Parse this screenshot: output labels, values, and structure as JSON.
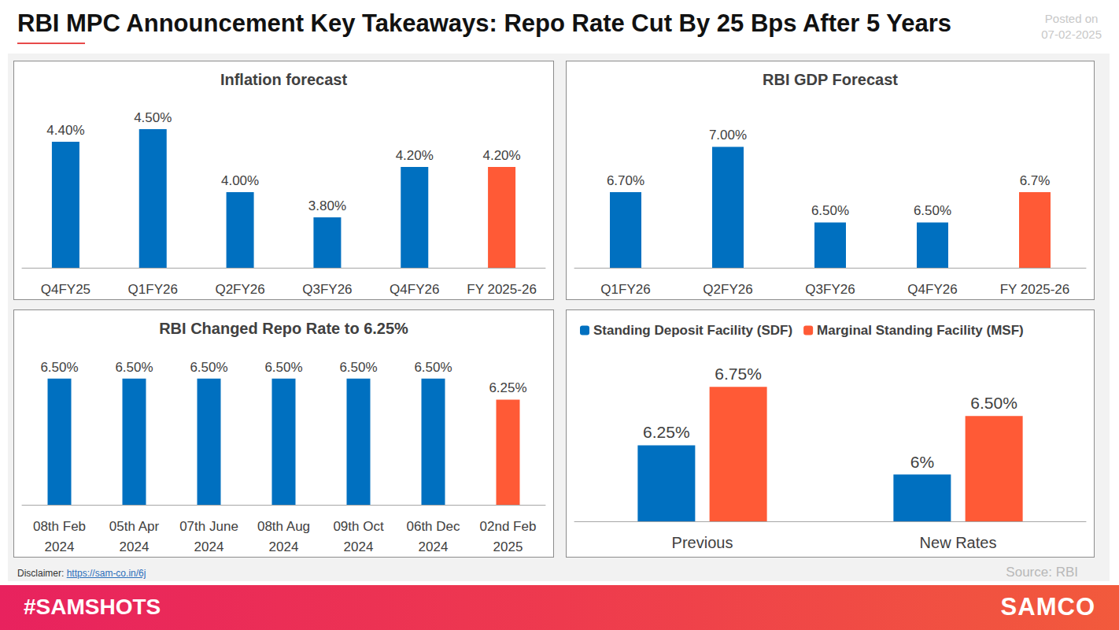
{
  "page": {
    "title": "RBI MPC Announcement Key Takeaways: Repo Rate Cut By 25 Bps After 5 Years",
    "posted_label": "Posted on",
    "posted_date": "07-02-2025",
    "disclaimer_label": "Disclaimer:",
    "disclaimer_link": "https://sam-co.in/6j",
    "source": "Source: RBI",
    "hashtag": "#SAMSHOTS",
    "brand": "SAMCO"
  },
  "chart_data": [
    {
      "type": "bar",
      "title": "Inflation forecast",
      "categories": [
        "Q4FY25",
        "Q1FY26",
        "Q2FY26",
        "Q3FY26",
        "Q4FY26",
        "FY 2025-26"
      ],
      "values": [
        4.4,
        4.5,
        4.0,
        3.8,
        4.2,
        4.2
      ],
      "value_labels": [
        "4.40%",
        "4.50%",
        "4.00%",
        "3.80%",
        "4.20%",
        "4.20%"
      ],
      "colors": [
        "#0070c0",
        "#0070c0",
        "#0070c0",
        "#0070c0",
        "#0070c0",
        "#ff5a36"
      ],
      "ylim": [
        3.4,
        4.6
      ],
      "yticks": [
        3.4,
        3.6,
        3.8,
        4.0,
        4.2,
        4.4,
        4.6
      ],
      "data_labels": true,
      "tick_labels": "x",
      "grid": false
    },
    {
      "type": "bar",
      "title": "RBI GDP Forecast",
      "categories": [
        "Q1FY26",
        "Q2FY26",
        "Q3FY26",
        "Q4FY26",
        "FY 2025-26"
      ],
      "values": [
        6.7,
        7.0,
        6.5,
        6.5,
        6.7
      ],
      "value_labels": [
        "6.70%",
        "7.00%",
        "6.50%",
        "6.50%",
        "6.7%"
      ],
      "colors": [
        "#0070c0",
        "#0070c0",
        "#0070c0",
        "#0070c0",
        "#ff5a36"
      ],
      "ylim": [
        6.2,
        7.2
      ],
      "yticks": [
        6.2,
        6.4,
        6.6,
        6.8,
        7.0,
        7.2
      ],
      "data_labels": true,
      "tick_labels": "x",
      "grid": false
    },
    {
      "type": "bar",
      "title": "RBI Changed Repo Rate to 6.25%",
      "categories": [
        "08th Feb 2024",
        "05th Apr 2024",
        "07th June 2024",
        "08th Aug 2024",
        "09th Oct 2024",
        "06th Dec 2024",
        "02nd Feb 2025"
      ],
      "values": [
        6.5,
        6.5,
        6.5,
        6.5,
        6.5,
        6.5,
        6.25
      ],
      "value_labels": [
        "6.50%",
        "6.50%",
        "6.50%",
        "6.50%",
        "6.50%",
        "6.50%",
        "6.25%"
      ],
      "colors": [
        "#0070c0",
        "#0070c0",
        "#0070c0",
        "#0070c0",
        "#0070c0",
        "#0070c0",
        "#ff5a36"
      ],
      "ylim": [
        5.0,
        6.75
      ],
      "yticks": [
        5.0,
        5.25,
        5.5,
        5.75,
        6.0,
        6.25,
        6.5,
        6.75
      ],
      "data_labels": true,
      "tick_labels": "x",
      "grid": false
    },
    {
      "type": "bar",
      "categories": [
        "Previous",
        "New Rates"
      ],
      "series": [
        {
          "name": "Standing Deposit Facility (SDF)",
          "color": "#0070c0",
          "values": [
            6.25,
            6.0
          ],
          "value_labels": [
            "6.25%",
            "6%"
          ]
        },
        {
          "name": "Marginal Standing Facility (MSF)",
          "color": "#ff5a36",
          "values": [
            6.75,
            6.5
          ],
          "value_labels": [
            "6.75%",
            "6.50%"
          ]
        }
      ],
      "ylim": [
        5.6,
        7.0
      ],
      "yticks": [
        5.6,
        5.8,
        6.0,
        6.2,
        6.4,
        6.6,
        6.8,
        7.0
      ],
      "legend": "top-left",
      "data_labels": true,
      "tick_labels": "x",
      "grid": false
    }
  ]
}
